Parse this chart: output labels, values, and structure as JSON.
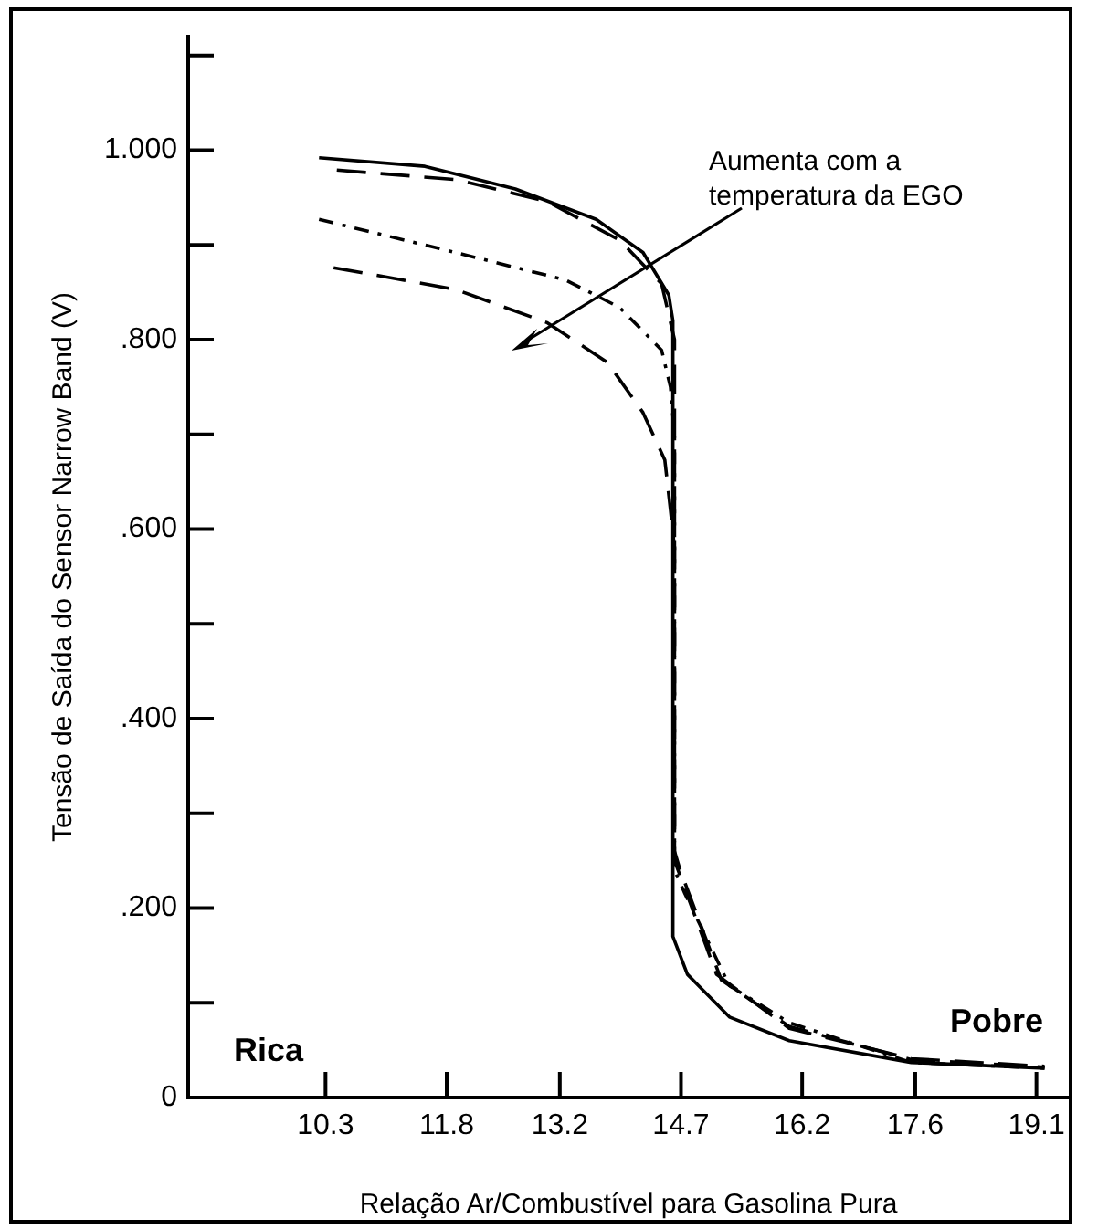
{
  "chart_data": {
    "type": "line",
    "xlabel": "Relação Ar/Combustível para Gasolina Pura",
    "ylabel": "Tensão de Saída do Sensor Narrow Band (V)",
    "xlim": [
      8.6,
      19.5
    ],
    "xticks": [
      10.3,
      11.8,
      13.2,
      14.7,
      16.2,
      17.6,
      19.1
    ],
    "ylim": [
      0,
      1.12
    ],
    "yticks": [
      0,
      {
        "value": 0.1,
        "label": null
      },
      {
        "value": 0.2,
        "label": ".200"
      },
      {
        "value": 0.3,
        "label": null
      },
      {
        "value": 0.4,
        "label": ".400"
      },
      {
        "value": 0.5,
        "label": null
      },
      {
        "value": 0.6,
        "label": ".600"
      },
      {
        "value": 0.7,
        "label": null
      },
      {
        "value": 0.8,
        "label": ".800"
      },
      {
        "value": 0.9,
        "label": null
      },
      {
        "value": 1.0,
        "label": "1.000"
      },
      {
        "value": 1.1,
        "label": null
      }
    ],
    "grid": false,
    "legend": false,
    "marker": "none",
    "series": [
      {
        "color": "#000000",
        "line_style": "solid",
        "x": [
          10.22,
          11.53,
          12.65,
          13.65,
          14.23,
          14.55,
          14.6,
          14.6,
          14.78,
          15.3,
          16.04,
          17.55,
          19.2
        ],
        "values": [
          0.992,
          0.983,
          0.959,
          0.927,
          0.892,
          0.847,
          0.82,
          0.17,
          0.13,
          0.085,
          0.06,
          0.037,
          0.031
        ]
      },
      {
        "color": "#000000",
        "line_style": "dashed",
        "x": [
          10.44,
          11.91,
          13.04,
          13.94,
          14.46,
          14.62,
          14.62,
          14.69,
          15.14,
          16.04,
          17.55,
          19.2
        ],
        "values": [
          0.979,
          0.969,
          0.946,
          0.905,
          0.859,
          0.8,
          0.25,
          0.234,
          0.13,
          0.073,
          0.041,
          0.033
        ]
      },
      {
        "color": "#000000",
        "line_style": "dotted",
        "x": [
          10.22,
          11.91,
          13.27,
          13.94,
          14.46,
          14.57,
          14.62,
          14.62,
          14.75,
          15.3,
          16.04,
          17.55,
          19.2
        ],
        "values": [
          0.927,
          0.892,
          0.863,
          0.834,
          0.789,
          0.75,
          0.7,
          0.24,
          0.215,
          0.118,
          0.079,
          0.037,
          0.031
        ]
      },
      {
        "color": "#000000",
        "line_style": "dashed",
        "x": [
          10.4,
          11.91,
          13.04,
          13.79,
          14.23,
          14.5,
          14.57,
          14.62,
          14.62,
          14.69,
          15.2,
          16.04,
          17.55,
          19.2
        ],
        "values": [
          0.876,
          0.853,
          0.818,
          0.776,
          0.723,
          0.673,
          0.62,
          0.58,
          0.26,
          0.24,
          0.124,
          0.075,
          0.04,
          0.032
        ]
      }
    ],
    "annotations": [
      "Aumenta com a temperatura da EGO",
      "Rica",
      "Pobre"
    ]
  }
}
